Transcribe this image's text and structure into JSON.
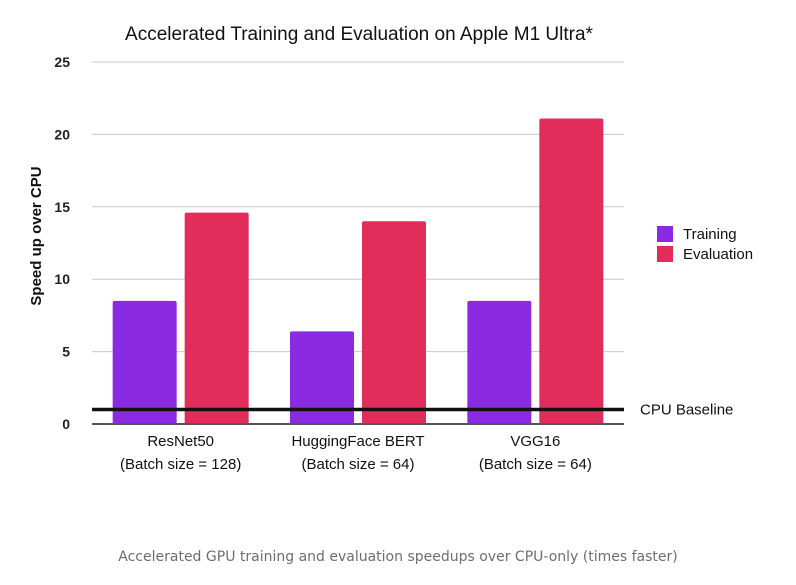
{
  "chart_data": {
    "type": "bar",
    "title": "Accelerated Training and Evaluation on Apple M1 Ultra*",
    "xlabel": "",
    "ylabel": "Speed up over CPU",
    "ylim": [
      0,
      25
    ],
    "yticks": [
      0,
      5,
      10,
      15,
      20,
      25
    ],
    "grid": true,
    "legend_position": "right",
    "categories": [
      [
        "ResNet50",
        "(Batch size = 128)"
      ],
      [
        "HuggingFace BERT",
        "(Batch size = 64)"
      ],
      [
        "VGG16",
        "(Batch size = 64)"
      ]
    ],
    "series": [
      {
        "name": "Training",
        "color": "#8a2be2",
        "values": [
          8.5,
          6.4,
          8.5
        ]
      },
      {
        "name": "Evaluation",
        "color": "#e22d5a",
        "values": [
          14.6,
          14.0,
          21.1
        ]
      }
    ],
    "baseline": {
      "label": "CPU Baseline",
      "value": 1
    }
  },
  "caption": "Accelerated GPU training and evaluation speedups over CPU-only (times faster)"
}
